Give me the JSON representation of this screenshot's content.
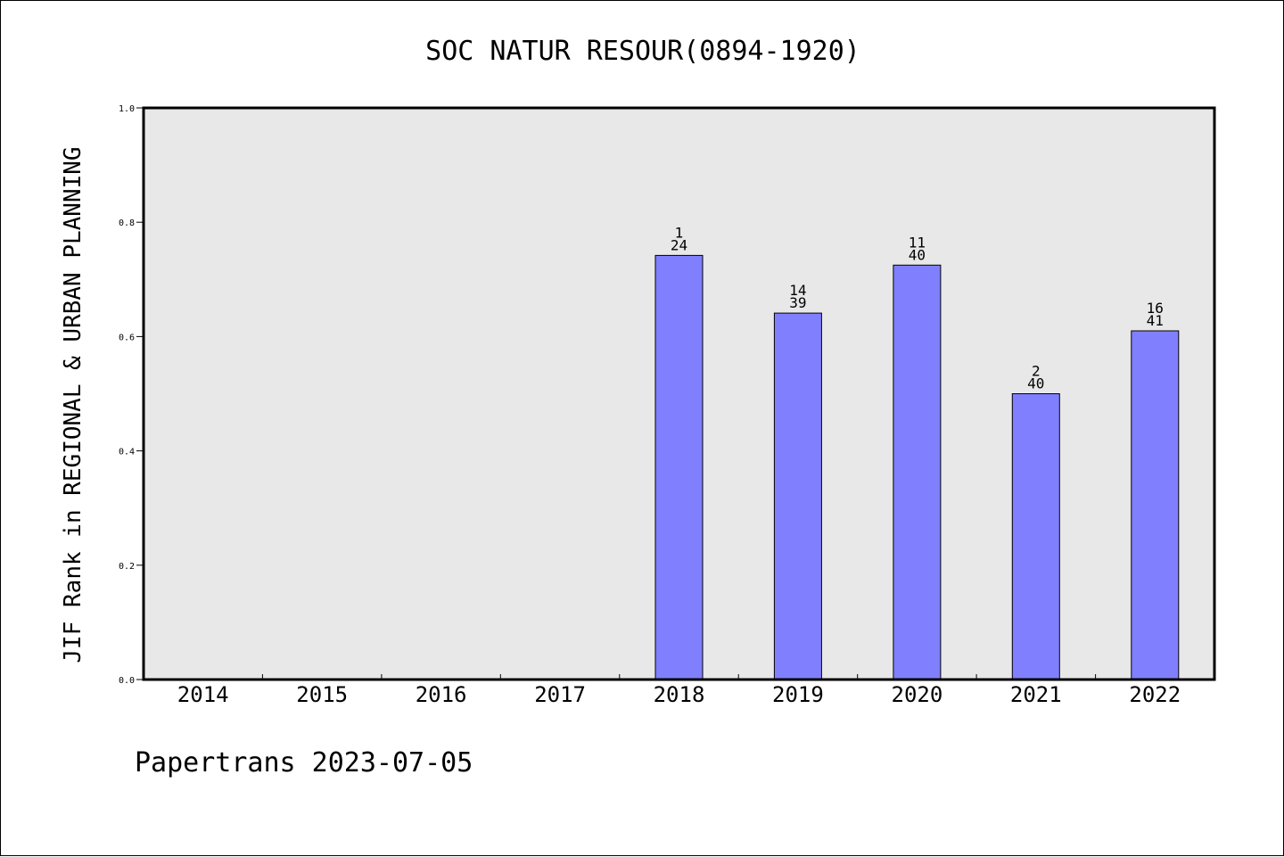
{
  "chart_data": {
    "type": "bar",
    "title": "SOC NATUR RESOUR(0894-1920)",
    "xlabel": "",
    "ylabel": "JIF Rank in REGIONAL & URBAN PLANNING",
    "categories": [
      "2014",
      "2015",
      "2016",
      "2017",
      "2018",
      "2019",
      "2020",
      "2021",
      "2022"
    ],
    "values": [
      null,
      null,
      null,
      null,
      0.742,
      0.641,
      0.725,
      0.5,
      0.61
    ],
    "labels_top": [
      "",
      "",
      "",
      "",
      "1",
      "14",
      "11",
      "2",
      "16"
    ],
    "labels_bottom": [
      "",
      "",
      "",
      "",
      "24",
      "39",
      "40",
      "40",
      "41"
    ],
    "ylim": [
      0,
      1.0
    ],
    "yticks": [
      "0.0",
      "0.2",
      "0.4",
      "0.6",
      "0.8",
      "1.0"
    ],
    "grid": false,
    "colors": {
      "bar": "#8080ff",
      "plot_bg": "#e8e8e8"
    }
  },
  "footer": "Papertrans 2023-07-05"
}
